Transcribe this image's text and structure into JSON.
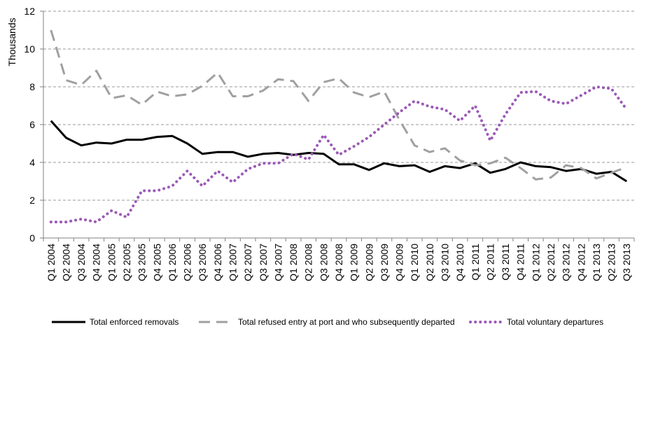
{
  "chart_data": {
    "type": "line",
    "ylabel": "Thousands",
    "ylim": [
      0,
      12
    ],
    "yticks": [
      0,
      2,
      4,
      6,
      8,
      10,
      12
    ],
    "grid": "horizontal dashed",
    "legend_position": "bottom",
    "x": [
      "Q1 2004",
      "Q2 2004",
      "Q3 2004",
      "Q4 2004",
      "Q1 2005",
      "Q2 2005",
      "Q3 2005",
      "Q4 2005",
      "Q1 2006",
      "Q2 2006",
      "Q3 2006",
      "Q4 2006",
      "Q1 2007",
      "Q2 2007",
      "Q3 2007",
      "Q4 2007",
      "Q1 2008",
      "Q2 2008",
      "Q3 2008",
      "Q4 2008",
      "Q1 2009",
      "Q2 2009",
      "Q3 2009",
      "Q4 2009",
      "Q1 2010",
      "Q2 2010",
      "Q3 2010",
      "Q4 2010",
      "Q1 2011",
      "Q2 2011",
      "Q3 2011",
      "Q4 2011",
      "Q1 2012",
      "Q2 2012",
      "Q3 2012",
      "Q4 2012",
      "Q1 2013",
      "Q2 2013",
      "Q3 2013"
    ],
    "x_all_quarters": [
      "Q1 2004",
      "Q2 2004",
      "Q3 2004",
      "Q4 2004",
      "Q1 2005",
      "Q2 2005",
      "Q3 2005",
      "Q4 2005",
      "Q1 2006",
      "Q2 2006",
      "Q3 2006",
      "Q4 2006",
      "Q1 2007",
      "Q2 2007",
      "Q3 2007",
      "Q4 2007",
      "Q1 2008",
      "Q2 2008",
      "Q3 2008",
      "Q4 2008",
      "Q1 2009",
      "Q2 2009",
      "Q3 2009",
      "Q4 2009",
      "Q1 2010",
      "Q2 2010",
      "Q3 2010",
      "Q4 2010",
      "Q1 2011",
      "Q2 2011",
      "Q3 2011",
      "Q4 2011",
      "Q1 2012",
      "Q2 2012",
      "Q3 2012",
      "Q4 2012",
      "Q1 2013",
      "Q2 2013",
      "Q3 2013"
    ],
    "series": [
      {
        "name": "Total enforced removals",
        "color": "#000000",
        "style": "solid",
        "values": [
          6.2,
          5.3,
          4.9,
          5.05,
          5.0,
          5.2,
          5.2,
          5.35,
          5.4,
          5.0,
          4.45,
          4.55,
          4.55,
          4.3,
          4.45,
          4.5,
          4.4,
          4.5,
          4.45,
          3.9,
          3.9,
          3.6,
          3.95,
          3.8,
          3.85,
          3.5,
          3.8,
          3.7,
          3.95,
          3.45,
          3.65,
          4.0,
          3.8,
          3.75,
          3.55,
          3.65,
          3.4,
          3.5,
          3.0
        ]
      },
      {
        "name": "Total refused entry at port and who subsequently departed",
        "color": "#a0a0a0",
        "style": "dashed",
        "values": [
          11.0,
          8.35,
          8.1,
          8.85,
          7.4,
          7.55,
          7.05,
          7.75,
          7.5,
          7.6,
          8.05,
          8.75,
          7.5,
          7.5,
          7.8,
          8.4,
          8.3,
          7.25,
          8.25,
          8.45,
          7.7,
          7.45,
          7.75,
          6.25,
          4.9,
          4.55,
          4.75,
          4.1,
          3.85,
          3.95,
          4.25,
          3.7,
          3.1,
          3.2,
          3.85,
          3.7,
          3.15,
          3.45,
          3.75
        ]
      },
      {
        "name": "Total voluntary departures",
        "color": "#9b59b6",
        "style": "dotted",
        "values": [
          0.85,
          0.85,
          1.0,
          0.85,
          1.45,
          1.1,
          2.5,
          2.5,
          2.75,
          3.55,
          2.75,
          3.55,
          2.95,
          3.65,
          3.95,
          3.95,
          4.45,
          4.15,
          5.45,
          4.4,
          4.85,
          5.35,
          6.0,
          6.65,
          7.25,
          6.95,
          6.8,
          6.2,
          7.0,
          5.15,
          6.55,
          7.7,
          7.75,
          7.25,
          7.1,
          7.55,
          8.0,
          7.9,
          6.8
        ]
      }
    ]
  }
}
